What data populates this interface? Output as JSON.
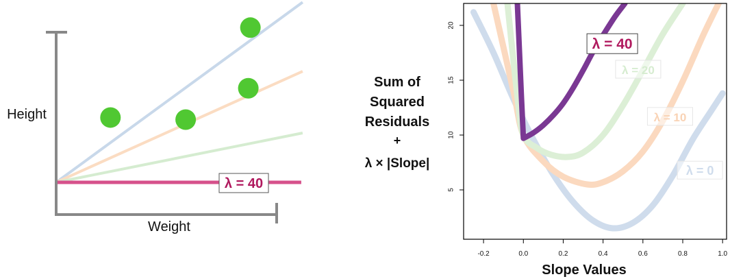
{
  "chart_data": [
    {
      "type": "scatter",
      "xlabel": "Weight",
      "ylabel": "Height",
      "points": [
        {
          "x": 1.3,
          "y": 1.55
        },
        {
          "x": 3.1,
          "y": 1.5
        },
        {
          "x": 4.6,
          "y": 2.25
        },
        {
          "x": 4.65,
          "y": 3.7
        }
      ],
      "lines": [
        {
          "label": "",
          "slope": 0.73,
          "color": "#c8d8ea"
        },
        {
          "label": "",
          "slope": 0.45,
          "color": "#fbdcc2"
        },
        {
          "label": "",
          "slope": 0.2,
          "color": "#d5ecd0"
        },
        {
          "label": "λ = 40",
          "slope": 0.0,
          "color": "#d6518b"
        }
      ],
      "colors": {
        "points": "#50c832",
        "axis": "#888888"
      }
    },
    {
      "type": "line",
      "ylabel_lines": [
        "Sum of",
        "Squared",
        "Residuals",
        "+",
        "λ × |Slope|"
      ],
      "xlabel": "Slope Values",
      "xlim": [
        -0.3,
        1.02
      ],
      "ylim": [
        0.5,
        22
      ],
      "xticks": [
        "-0.2",
        "0.0",
        "0.2",
        "0.4",
        "0.6",
        "0.8",
        "1.0"
      ],
      "yticks": [
        "5",
        "10",
        "15",
        "20"
      ],
      "series": [
        {
          "name": "λ = 0",
          "color": "#cfdcec",
          "x": [
            -0.25,
            -0.15,
            -0.05,
            0.05,
            0.15,
            0.25,
            0.35,
            0.45,
            0.55,
            0.65,
            0.75,
            0.85,
            0.95,
            1.0
          ],
          "y": [
            21.2,
            17.5,
            13.3,
            9.6,
            6.4,
            3.9,
            2.2,
            1.5,
            2.0,
            3.6,
            6.3,
            9.6,
            12.4,
            13.8
          ]
        },
        {
          "name": "λ = 10",
          "color": "#fbd9bf",
          "x": [
            -0.15,
            -0.05,
            0.0,
            0.1,
            0.2,
            0.32,
            0.4,
            0.5,
            0.6,
            0.7,
            0.8,
            0.9,
            0.98
          ],
          "y": [
            22.0,
            14.0,
            10.0,
            7.6,
            6.2,
            5.5,
            5.7,
            6.7,
            8.5,
            11.3,
            14.9,
            19.0,
            22.0
          ]
        },
        {
          "name": "λ = 20",
          "color": "#dcefd6",
          "x": [
            -0.08,
            -0.03,
            0.0,
            0.07,
            0.14,
            0.22,
            0.3,
            0.4,
            0.5,
            0.6,
            0.7,
            0.8
          ],
          "y": [
            22.0,
            13.5,
            10.0,
            8.8,
            8.2,
            8.0,
            8.4,
            10.0,
            12.7,
            15.9,
            19.2,
            22.0
          ]
        },
        {
          "name": "λ = 40",
          "color": "#7a3893",
          "x": [
            -0.03,
            -0.01,
            0.0,
            0.05,
            0.1,
            0.15,
            0.2,
            0.25,
            0.3,
            0.35,
            0.4,
            0.46,
            0.51
          ],
          "y": [
            22.0,
            13.5,
            9.7,
            10.2,
            10.9,
            11.8,
            12.9,
            14.3,
            15.9,
            17.6,
            19.1,
            20.8,
            22.0
          ]
        }
      ]
    }
  ]
}
